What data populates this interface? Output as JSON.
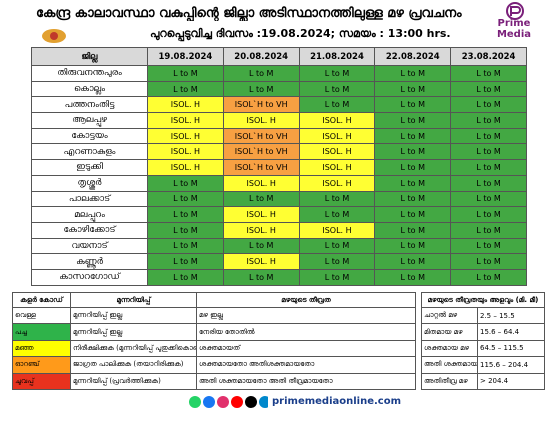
{
  "header": {
    "title": "കേന്ദ്ര കാലാവസ്ഥാ വകുപ്പിന്റെ ജില്ലാ അടിസ്ഥാനത്തിലുള്ള മഴ പ്രവചനം",
    "subtitle": "പുറപ്പെടുവിച്ച ദിവസം :19.08.2024; സമയം : 13:00 hrs.",
    "logo_text": "Prime Media"
  },
  "forecast_table": {
    "columns": [
      "ജില്ല",
      "19.08.2024",
      "20.08.2024",
      "21.08.2024",
      "22.08.2024",
      "23.08.2024"
    ],
    "rows": [
      {
        "district": "തിരുവനന്തപുരം",
        "values": [
          "L to M",
          "L to M",
          "L to M",
          "L to M",
          "L to M"
        ],
        "colors": [
          "#43a843",
          "#43a843",
          "#43a843",
          "#43a843",
          "#43a843"
        ]
      },
      {
        "district": "കൊല്ലം",
        "values": [
          "L to M",
          "L to M",
          "L to M",
          "L to M",
          "L to M"
        ],
        "colors": [
          "#43a843",
          "#43a843",
          "#43a843",
          "#43a843",
          "#43a843"
        ]
      },
      {
        "district": "പത്തനംതിട്ട",
        "values": [
          "ISOL. H",
          "ISOL`H to VH",
          "L to M",
          "L to M",
          "L to M"
        ],
        "colors": [
          "#ffff33",
          "#f7a042",
          "#43a843",
          "#43a843",
          "#43a843"
        ]
      },
      {
        "district": "ആലപ്പുഴ",
        "values": [
          "ISOL. H",
          "ISOL. H",
          "ISOL. H",
          "L to M",
          "L to M"
        ],
        "colors": [
          "#ffff33",
          "#ffff33",
          "#ffff33",
          "#43a843",
          "#43a843"
        ]
      },
      {
        "district": "കോട്ടയം",
        "values": [
          "ISOL. H",
          "ISOL`H to VH",
          "ISOL. H",
          "L to M",
          "L to M"
        ],
        "colors": [
          "#ffff33",
          "#f7a042",
          "#ffff33",
          "#43a843",
          "#43a843"
        ]
      },
      {
        "district": "എറണാകുളം",
        "values": [
          "ISOL. H",
          "ISOL`H to VH",
          "ISOL. H",
          "L to M",
          "L to M"
        ],
        "colors": [
          "#ffff33",
          "#f7a042",
          "#ffff33",
          "#43a843",
          "#43a843"
        ]
      },
      {
        "district": "ഇടുക്കി",
        "values": [
          "ISOL. H",
          "ISOL`H to VH",
          "ISOL. H",
          "L to M",
          "L to M"
        ],
        "colors": [
          "#ffff33",
          "#f7a042",
          "#ffff33",
          "#43a843",
          "#43a843"
        ]
      },
      {
        "district": "തൃശ്ശൂർ",
        "values": [
          "L to M",
          "ISOL. H",
          "ISOL. H",
          "L to M",
          "L to M"
        ],
        "colors": [
          "#43a843",
          "#ffff33",
          "#ffff33",
          "#43a843",
          "#43a843"
        ]
      },
      {
        "district": "പാലക്കാട്",
        "values": [
          "L to M",
          "L to M",
          "L to M",
          "L to M",
          "L to M"
        ],
        "colors": [
          "#43a843",
          "#43a843",
          "#43a843",
          "#43a843",
          "#43a843"
        ]
      },
      {
        "district": "മലപ്പുറം",
        "values": [
          "L to M",
          "ISOL. H",
          "L to M",
          "L to M",
          "L to M"
        ],
        "colors": [
          "#43a843",
          "#ffff33",
          "#43a843",
          "#43a843",
          "#43a843"
        ]
      },
      {
        "district": "കോഴിക്കോട്",
        "values": [
          "L to M",
          "ISOL. H",
          "ISOL. H",
          "L to M",
          "L to M"
        ],
        "colors": [
          "#43a843",
          "#ffff33",
          "#ffff33",
          "#43a843",
          "#43a843"
        ]
      },
      {
        "district": "വയനാട്",
        "values": [
          "L to M",
          "L to M",
          "L to M",
          "L to M",
          "L to M"
        ],
        "colors": [
          "#43a843",
          "#43a843",
          "#43a843",
          "#43a843",
          "#43a843"
        ]
      },
      {
        "district": "കണ്ണൂർ",
        "values": [
          "L to M",
          "ISOL. H",
          "L to M",
          "L to M",
          "L to M"
        ],
        "colors": [
          "#43a843",
          "#ffff33",
          "#43a843",
          "#43a843",
          "#43a843"
        ]
      },
      {
        "district": "കാസറഗോഡ്",
        "values": [
          "L to M",
          "L to M",
          "L to M",
          "L to M",
          "L to M"
        ],
        "colors": [
          "#43a843",
          "#43a843",
          "#43a843",
          "#43a843",
          "#43a843"
        ]
      }
    ]
  },
  "legend_table": {
    "columns": [
      "കളർ കോഡ്",
      "മുന്നറിയിപ്പ്",
      "മഴയുടെ തീവ്രത"
    ],
    "rows": [
      {
        "color_name": "വെള്ള",
        "color": "#ffffff",
        "warning": "മുന്നറിയിപ്പ് ഇല്ല",
        "intensity": "മഴ ഇല്ല"
      },
      {
        "color_name": "പച്ച",
        "color": "#2fb34a",
        "warning": "മുന്നറിയിപ്പ് ഇല്ല",
        "intensity": "നേരിയ തോതിൽ"
      },
      {
        "color_name": "മഞ്ഞ",
        "color": "#ffff00",
        "warning": "നിരീക്ഷിക്കുക (മുന്നറിയിപ്പ് പുതുക്കികൊണ്ടിരിക്കും)",
        "intensity": "ശക്തമായത്"
      },
      {
        "color_name": "ഓറഞ്ച്",
        "color": "#ff9a1a",
        "warning": "ജാഗ്രത പാലിക്കുക (തയാറിരിക്കുക)",
        "intensity": "ശക്തമായതോ അതിശക്തമായതോ"
      },
      {
        "color_name": "ചുവപ്പ്",
        "color": "#e8321e",
        "warning": "മുന്നറിയിപ്പ് (പ്രവർത്തിക്കുക)",
        "intensity": "അതി ശക്തമായതോ അതി തീവ്രമായതോ"
      }
    ]
  },
  "rainfall_table": {
    "title": "മഴയുടെ തീവ്രതയും അളവും (മി. മീ)",
    "rows": [
      {
        "name": "ചാറ്റൽ മഴ",
        "range": "2.5 – 15.5"
      },
      {
        "name": "മിതമായ മഴ",
        "range": "15.6 – 64.4"
      },
      {
        "name": "ശക്തമായ മഴ",
        "range": "64.5 – 115.5"
      },
      {
        "name": "അതി ശക്തമായ മഴ",
        "range": "115.6 – 204.4"
      },
      {
        "name": "അതിതീവ്ര മഴ",
        "range": "> 204.4"
      }
    ]
  },
  "footer": {
    "website": "primemediaonline.com"
  }
}
